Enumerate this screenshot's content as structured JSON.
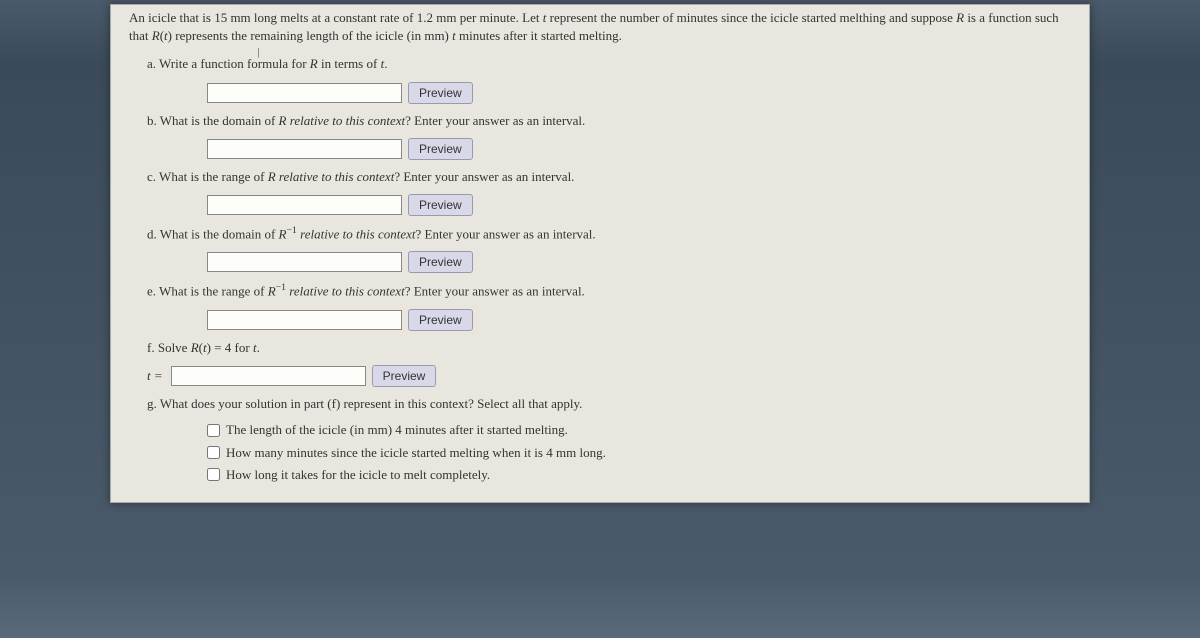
{
  "intro": "An icicle that is 15 mm long melts at a constant rate of 1.2 mm per minute. Let t represent the number of minutes since the icicle started melthing and suppose R is a function such that R(t) represents the remaining length of the icicle (in mm) t minutes after it started melting.",
  "parts": {
    "a": {
      "label": "a.",
      "text": "Write a function formula for R in terms of t."
    },
    "b": {
      "label": "b.",
      "text": "What is the domain of R relative to this context? Enter your answer as an interval."
    },
    "c": {
      "label": "c.",
      "text": "What is the range of R relative to this context? Enter your answer as an interval."
    },
    "d": {
      "label": "d.",
      "text_before": "What is the domain of ",
      "text_mid": "R",
      "text_sup": "−1",
      "text_after": " relative to this context? Enter your answer as an interval."
    },
    "e": {
      "label": "e.",
      "text_before": "What is the range of ",
      "text_mid": "R",
      "text_sup": "−1",
      "text_after": " relative to this context? Enter your answer as an interval."
    },
    "f": {
      "label": "f.",
      "text": "Solve R(t) = 4 for t.",
      "prefix": "t ="
    },
    "g": {
      "label": "g.",
      "text": "What does your solution in part (f) represent in this context? Select all that apply."
    }
  },
  "preview_label": "Preview",
  "checklist": {
    "opt1": "The length of the icicle (in mm) 4 minutes after it started melting.",
    "opt2": "How many minutes since the icicle started melting when it is 4 mm long.",
    "opt3": "How long it takes for the icicle to melt completely."
  }
}
